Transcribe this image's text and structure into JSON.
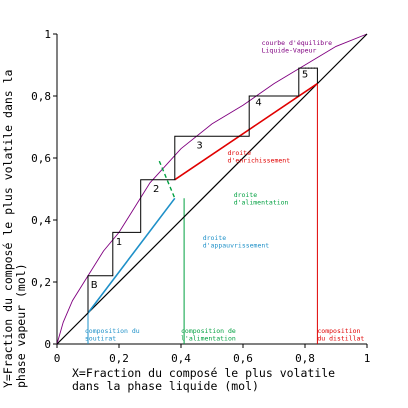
{
  "chart_data": {
    "type": "line",
    "title": "",
    "xlabel_lines": [
      "X=Fraction du composé le plus volatile",
      "dans la phase liquide (mol)"
    ],
    "ylabel_lines": [
      "Y=Fraction du composé le plus volatile dans la",
      "phase vapeur (mol)"
    ],
    "xlim": [
      0,
      1
    ],
    "ylim": [
      0,
      1
    ],
    "x_ticks": [
      0,
      0.2,
      0.4,
      0.6,
      0.8,
      1
    ],
    "y_ticks": [
      0,
      0.2,
      0.4,
      0.6,
      0.8,
      1
    ],
    "x_tick_labels": [
      "0",
      "0,2",
      "0,4",
      "0,6",
      "0,8",
      "1"
    ],
    "y_tick_labels": [
      "0",
      "0,2",
      "0,4",
      "0,6",
      "0,8",
      "1"
    ],
    "grid": false,
    "colors": {
      "equilibrium": "#800080",
      "diagonal": "#000000",
      "enrichment": "#e00000",
      "feed": "#00a040",
      "stripping": "#1e90c8",
      "steps": "#000000"
    },
    "series": [
      {
        "role": "equilibrium",
        "x": [
          0,
          0.02,
          0.05,
          0.1,
          0.15,
          0.2,
          0.25,
          0.3,
          0.4,
          0.5,
          0.6,
          0.7,
          0.8,
          0.9,
          1.0
        ],
        "y": [
          0,
          0.07,
          0.14,
          0.22,
          0.3,
          0.36,
          0.44,
          0.52,
          0.63,
          0.71,
          0.77,
          0.84,
          0.9,
          0.96,
          1.0
        ]
      },
      {
        "role": "diagonal",
        "x": [
          0,
          1
        ],
        "y": [
          0,
          1
        ]
      },
      {
        "role": "enrichment",
        "x": [
          0.84,
          0.38
        ],
        "y": [
          0.84,
          0.53
        ]
      },
      {
        "role": "feed",
        "x": [
          0.33,
          0.38
        ],
        "y": [
          0.59,
          0.47
        ],
        "dashed_to": [
          0.33,
          0.59
        ]
      },
      {
        "role": "stripping",
        "x": [
          0.1,
          0.38
        ],
        "y": [
          0.1,
          0.47
        ]
      }
    ],
    "steps": {
      "x": [
        0.1,
        0.1,
        0.18,
        0.18,
        0.27,
        0.27,
        0.38,
        0.38,
        0.62,
        0.62,
        0.78,
        0.78,
        0.84,
        0.84
      ],
      "y": [
        0.1,
        0.22,
        0.22,
        0.36,
        0.36,
        0.53,
        0.53,
        0.67,
        0.67,
        0.8,
        0.8,
        0.89,
        0.89,
        0.84
      ]
    },
    "stage_labels": [
      {
        "text": "B",
        "x": 0.12,
        "y": 0.18
      },
      {
        "text": "1",
        "x": 0.2,
        "y": 0.32
      },
      {
        "text": "2",
        "x": 0.32,
        "y": 0.49
      },
      {
        "text": "3",
        "x": 0.46,
        "y": 0.63
      },
      {
        "text": "4",
        "x": 0.65,
        "y": 0.77
      },
      {
        "text": "5",
        "x": 0.8,
        "y": 0.86
      }
    ],
    "annotations": [
      {
        "color": "#800080",
        "lines": [
          "courbe d'équilibre",
          "Liquide-Vapeur"
        ],
        "x": 0.66,
        "y": 0.965
      },
      {
        "color": "#e00000",
        "lines": [
          "droite",
          "d'enrichissement"
        ],
        "x": 0.55,
        "y": 0.61
      },
      {
        "color": "#00a040",
        "lines": [
          "droite",
          "d'alimentation"
        ],
        "x": 0.57,
        "y": 0.475
      },
      {
        "color": "#1e90c8",
        "lines": [
          "droite",
          "d'appauvrissement"
        ],
        "x": 0.47,
        "y": 0.335
      },
      {
        "color": "#1e90c8",
        "lines": [
          "composition du",
          "soutirat"
        ],
        "x": 0.09,
        "y": 0.035
      },
      {
        "color": "#00a040",
        "lines": [
          "composition de",
          "l'alimentation"
        ],
        "x": 0.4,
        "y": 0.035
      },
      {
        "color": "#e00000",
        "lines": [
          "composition",
          "du distillat"
        ],
        "x": 0.84,
        "y": 0.035
      }
    ],
    "composition_markers": [
      {
        "role": "stripping",
        "x": 0.1
      },
      {
        "role": "feed",
        "x": 0.41
      },
      {
        "role": "enrichment",
        "x": 0.84
      }
    ]
  }
}
